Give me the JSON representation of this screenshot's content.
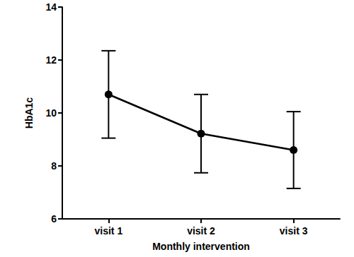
{
  "chart_data": {
    "type": "line",
    "x_label": "Monthly intervention",
    "y_label": "HbA1c",
    "categories": [
      "visit 1",
      "visit 2",
      "visit 3"
    ],
    "values": [
      10.7,
      9.22,
      8.6
    ],
    "errors": [
      1.65,
      1.48,
      1.45
    ],
    "color": "#000000",
    "marker": "circle",
    "ylim": [
      6,
      14
    ],
    "yticks": [
      6,
      8,
      10,
      12,
      14
    ],
    "grid": false
  }
}
